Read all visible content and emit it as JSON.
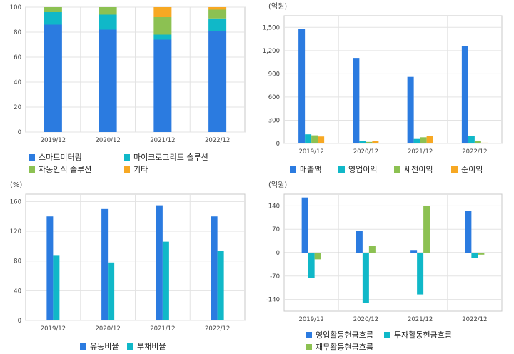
{
  "colors": {
    "blue": "#2b7be0",
    "cyan": "#10b8c8",
    "green": "#8cc152",
    "orange": "#f7a823",
    "grid": "#e3e3e3",
    "frame": "#c8c8c8"
  },
  "chart_data": [
    {
      "id": "composition",
      "type": "bar",
      "stacked": true,
      "categories": [
        "2019/12",
        "2020/12",
        "2021/12",
        "2022/12"
      ],
      "ylim": [
        0,
        100
      ],
      "yticks": [
        0,
        20,
        40,
        60,
        80,
        100
      ],
      "unit": "",
      "grid": true,
      "legend_position": "bottom",
      "series": [
        {
          "name": "스마트미터링",
          "color": "#2b7be0",
          "values": [
            86,
            82,
            74,
            81
          ]
        },
        {
          "name": "마이크로그리드 솔루션",
          "color": "#10b8c8",
          "values": [
            10,
            12,
            4,
            10
          ]
        },
        {
          "name": "자동인식 솔루션",
          "color": "#8cc152",
          "values": [
            4,
            6,
            14,
            7
          ]
        },
        {
          "name": "기타",
          "color": "#f7a823",
          "values": [
            0,
            0,
            8,
            2
          ]
        }
      ]
    },
    {
      "id": "income",
      "type": "bar",
      "categories": [
        "2019/12",
        "2020/12",
        "2021/12",
        "2022/12"
      ],
      "ylim": [
        0,
        1650
      ],
      "yticks": [
        0,
        300,
        600,
        900,
        1200,
        1500
      ],
      "ytick_labels": [
        "0",
        "300",
        "600",
        "900",
        "1,200",
        "1,500"
      ],
      "unit": "(억원)",
      "grid": true,
      "legend_position": "bottom",
      "series": [
        {
          "name": "매출액",
          "color": "#2b7be0",
          "values": [
            1480,
            1105,
            860,
            1255
          ]
        },
        {
          "name": "영업이익",
          "color": "#10b8c8",
          "values": [
            118,
            30,
            58,
            100
          ]
        },
        {
          "name": "세전이익",
          "color": "#8cc152",
          "values": [
            105,
            20,
            80,
            30
          ]
        },
        {
          "name": "순이익",
          "color": "#f7a823",
          "values": [
            90,
            28,
            95,
            10
          ]
        }
      ]
    },
    {
      "id": "ratios",
      "type": "bar",
      "categories": [
        "2019/12",
        "2020/12",
        "2021/12",
        "2022/12"
      ],
      "ylim": [
        0,
        170
      ],
      "yticks": [
        0,
        40,
        80,
        120,
        160
      ],
      "unit": "(%)",
      "grid": true,
      "legend_position": "bottom",
      "series": [
        {
          "name": "유동비율",
          "color": "#2b7be0",
          "values": [
            140,
            150,
            155,
            140
          ]
        },
        {
          "name": "부채비율",
          "color": "#10b8c8",
          "values": [
            88,
            78,
            106,
            94
          ]
        }
      ]
    },
    {
      "id": "cashflow",
      "type": "bar",
      "categories": [
        "2019/12",
        "2020/12",
        "2021/12",
        "2022/12"
      ],
      "ylim": [
        -175,
        175
      ],
      "yticks": [
        -140,
        -70,
        0,
        70,
        140
      ],
      "unit": "(억원)",
      "grid": true,
      "legend_position": "bottom",
      "series": [
        {
          "name": "영업활동현금흐름",
          "color": "#2b7be0",
          "values": [
            165,
            65,
            8,
            125
          ]
        },
        {
          "name": "투자활동현금흐름",
          "color": "#10b8c8",
          "values": [
            -75,
            -150,
            -125,
            -15
          ]
        },
        {
          "name": "재무활동현금흐름",
          "color": "#8cc152",
          "values": [
            -20,
            20,
            140,
            -6
          ]
        }
      ]
    }
  ]
}
